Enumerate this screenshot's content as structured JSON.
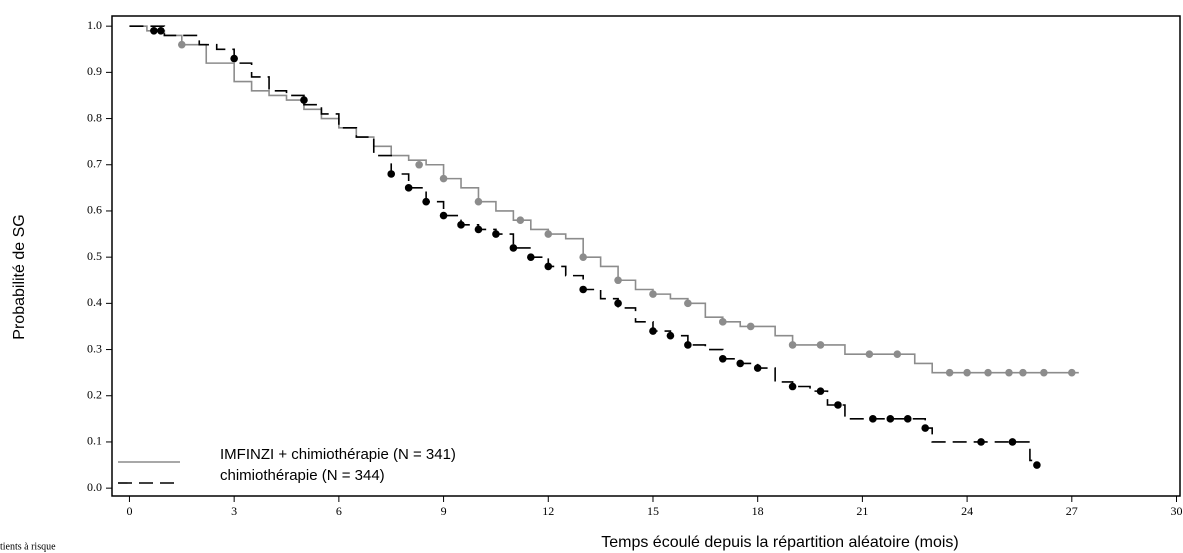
{
  "chart_data": {
    "type": "step",
    "ylabel": "Probabilité de SG",
    "xlabel": "Temps écoulé depuis la répartition aléatoire (mois)",
    "footnote": "tients à risque",
    "xlim": [
      -0.5,
      30.1
    ],
    "ylim": [
      -0.017,
      1.022
    ],
    "xticks": [
      0,
      3,
      6,
      9,
      12,
      15,
      18,
      21,
      24,
      27,
      30
    ],
    "yticks": [
      {
        "value": 0,
        "label": "0.0"
      },
      0.1,
      0.2,
      0.3,
      0.4,
      0.5,
      0.6,
      0.7,
      0.8,
      0.9,
      {
        "value": 1,
        "label": "1.0"
      }
    ],
    "series": [
      {
        "name": "IMFINZI + chimiothérapie (N = 341)",
        "color": "#8c8c8c",
        "dash": false,
        "x": [
          0,
          0.5,
          1,
          1.5,
          2.2,
          3,
          3.5,
          4,
          4.5,
          5,
          5.5,
          6,
          6.5,
          7,
          7.5,
          8,
          8.5,
          9,
          9.5,
          10,
          10.5,
          11,
          11.5,
          12,
          12.5,
          13,
          13.5,
          14,
          14.5,
          15,
          15.5,
          16,
          16.5,
          17,
          17.5,
          18.5,
          19,
          20.5,
          22.5,
          23,
          27.2
        ],
        "values": [
          1.0,
          0.99,
          0.98,
          0.96,
          0.92,
          0.88,
          0.86,
          0.85,
          0.84,
          0.82,
          0.8,
          0.78,
          0.76,
          0.74,
          0.72,
          0.71,
          0.7,
          0.67,
          0.65,
          0.62,
          0.6,
          0.58,
          0.56,
          0.55,
          0.54,
          0.5,
          0.48,
          0.45,
          0.43,
          0.42,
          0.41,
          0.4,
          0.37,
          0.36,
          0.35,
          0.33,
          0.31,
          0.29,
          0.27,
          0.25,
          0.25
        ],
        "censored_x": [
          1.5,
          8.3,
          9.0,
          10.0,
          11.2,
          12.0,
          13.0,
          14.0,
          15.0,
          16.0,
          17.0,
          17.8,
          19.0,
          19.8,
          21.2,
          22.0,
          23.5,
          24.0,
          24.6,
          25.2,
          25.6,
          26.2,
          27.0
        ],
        "censored_values": [
          0.96,
          0.7,
          0.67,
          0.62,
          0.58,
          0.55,
          0.5,
          0.45,
          0.42,
          0.4,
          0.36,
          0.35,
          0.31,
          0.31,
          0.29,
          0.29,
          0.25,
          0.25,
          0.25,
          0.25,
          0.25,
          0.25,
          0.25
        ]
      },
      {
        "name": "chimiothérapie (N = 344)",
        "color": "#000000",
        "dash": true,
        "x": [
          0,
          1,
          2,
          2.5,
          3,
          3.5,
          4,
          4.5,
          5,
          5.5,
          6,
          6.5,
          7,
          7.5,
          8,
          8.5,
          9,
          9.5,
          10,
          10.5,
          11,
          11.5,
          12,
          12.5,
          13,
          13.5,
          14,
          14.5,
          15,
          15.5,
          16,
          16.5,
          17,
          17.5,
          18,
          18.5,
          19,
          19.5,
          20,
          20.5,
          22.8,
          23,
          25.8,
          26
        ],
        "values": [
          1.0,
          0.98,
          0.96,
          0.95,
          0.92,
          0.89,
          0.86,
          0.85,
          0.83,
          0.81,
          0.78,
          0.76,
          0.72,
          0.68,
          0.65,
          0.62,
          0.59,
          0.57,
          0.56,
          0.55,
          0.52,
          0.5,
          0.48,
          0.46,
          0.43,
          0.41,
          0.39,
          0.36,
          0.34,
          0.33,
          0.31,
          0.3,
          0.28,
          0.27,
          0.26,
          0.23,
          0.22,
          0.21,
          0.18,
          0.15,
          0.13,
          0.1,
          0.06,
          0.05
        ],
        "censored_x": [
          0.7,
          0.9,
          3.0,
          5.0,
          7.5,
          8.0,
          8.5,
          9.0,
          9.5,
          10.0,
          10.5,
          11.0,
          11.5,
          12.0,
          13.0,
          14.0,
          15.0,
          15.5,
          16.0,
          17.0,
          17.5,
          18.0,
          19.0,
          19.8,
          20.3,
          21.3,
          21.8,
          22.3,
          22.8,
          24.4,
          25.3,
          26.0
        ],
        "censored_values": [
          0.99,
          0.99,
          0.93,
          0.84,
          0.68,
          0.65,
          0.62,
          0.59,
          0.57,
          0.56,
          0.55,
          0.52,
          0.5,
          0.48,
          0.43,
          0.4,
          0.34,
          0.33,
          0.31,
          0.28,
          0.27,
          0.26,
          0.22,
          0.21,
          0.18,
          0.15,
          0.15,
          0.15,
          0.13,
          0.1,
          0.1,
          0.05
        ]
      }
    ]
  }
}
